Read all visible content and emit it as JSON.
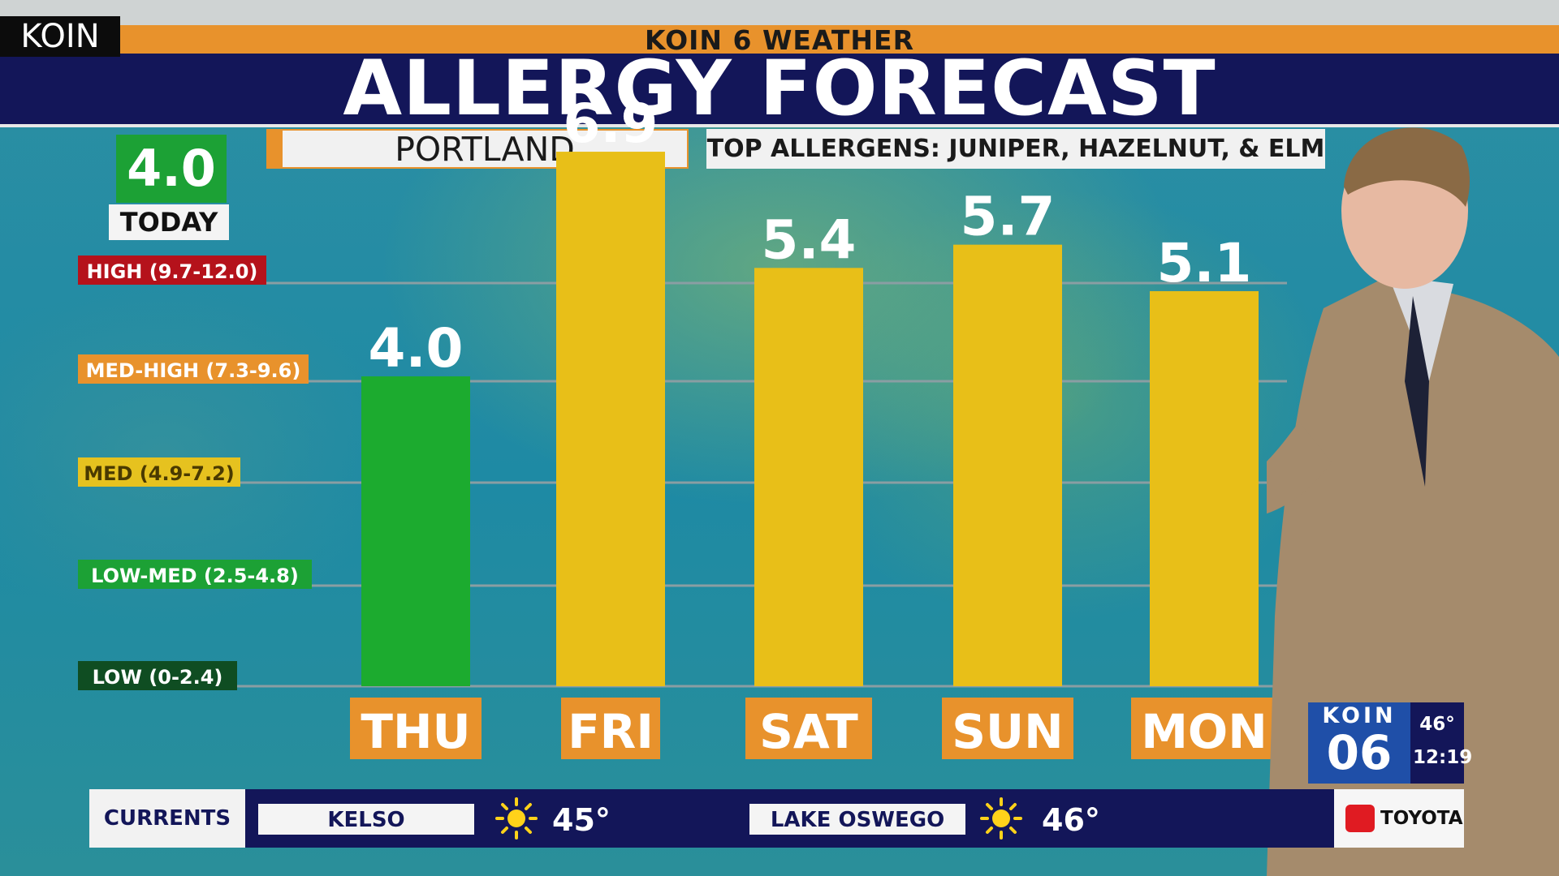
{
  "header": {
    "network_bug": "KOIN",
    "subtitle": "KOIN 6 WEATHER",
    "title": "ALLERGY FORECAST",
    "city": "PORTLAND",
    "top_allergens": "TOP ALLERGENS: JUNIPER, HAZELNUT, & ELM"
  },
  "today": {
    "value": "4.0",
    "label": "TODAY"
  },
  "chart_data": {
    "type": "bar",
    "title": "ALLERGY FORECAST",
    "categories": [
      "THU",
      "FRI",
      "SAT",
      "SUN",
      "MON"
    ],
    "values": [
      4.0,
      6.9,
      5.4,
      5.7,
      5.1
    ],
    "value_labels": [
      "4.0",
      "6.9",
      "5.4",
      "5.7",
      "5.1"
    ],
    "bar_colors": [
      "#1cab2f",
      "#e8bf18",
      "#e8bf18",
      "#e8bf18",
      "#e8bf18"
    ],
    "ylim": [
      0,
      12
    ],
    "levels": [
      {
        "label": "HIGH (9.7-12.0)",
        "color": "#b5121b",
        "text_color": "#ffffff"
      },
      {
        "label": "MED-HIGH (7.3-9.6)",
        "color": "#e8922c",
        "text_color": "#ffffff"
      },
      {
        "label": "MED (4.9-7.2)",
        "color": "#e6c21f",
        "text_color": "#4a3a00"
      },
      {
        "label": "LOW-MED (2.5-4.8)",
        "color": "#1ca135",
        "text_color": "#ffffff"
      },
      {
        "label": "LOW (0-2.4)",
        "color": "#0f4d22",
        "text_color": "#ffffff"
      }
    ],
    "category_label_bg": "#e8922c",
    "grid": true
  },
  "currents": {
    "label": "CURRENTS",
    "locations": [
      {
        "name": "KELSO",
        "icon": "sun-icon",
        "temp": "45°"
      },
      {
        "name": "LAKE OSWEGO",
        "icon": "sun-icon",
        "temp": "46°"
      }
    ]
  },
  "sponsor": {
    "name": "TOYOTA",
    "icon": "toyota-logo"
  },
  "station": {
    "name": "KOIN",
    "channel": "06",
    "temp": "46°",
    "time": "12:19"
  }
}
